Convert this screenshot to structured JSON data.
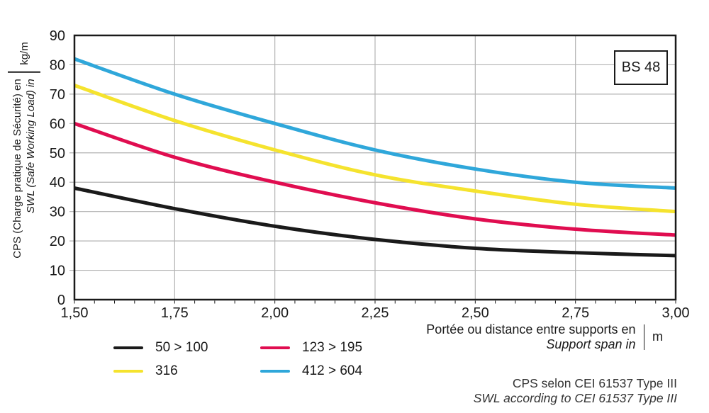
{
  "badge": {
    "label": "BS 48"
  },
  "axis_labels": {
    "y_line1": "CPS (Charge pratique de Sécurité) en",
    "y_line2": "SWL (Safe Working Load) in",
    "y_unit": "kg/m",
    "x_line1": "Portée ou distance entre supports en",
    "x_line2": "Support span in",
    "x_unit": "m"
  },
  "footnote": {
    "line1": "CPS selon CEI 61537 Type III",
    "line2": "SWL according to CEI 61537 Type III"
  },
  "chart_data": {
    "type": "line",
    "x": [
      1.5,
      1.75,
      2.0,
      2.25,
      2.5,
      2.75,
      3.0
    ],
    "x_tick_labels": [
      "1,50",
      "1,75",
      "2,00",
      "2,25",
      "2,50",
      "2,75",
      "3,00"
    ],
    "y_ticks": [
      0,
      10,
      20,
      30,
      40,
      50,
      60,
      70,
      80,
      90
    ],
    "xlim": [
      1.5,
      3.0
    ],
    "ylim": [
      0,
      90
    ],
    "x_minor_step": 0.05,
    "grid": true,
    "legend_position": "bottom-left",
    "series": [
      {
        "name": "50 > 100",
        "color": "#1a1a1a",
        "values": [
          38,
          31,
          25,
          20.5,
          17.5,
          16,
          15
        ]
      },
      {
        "name": "316",
        "color": "#f5e32e",
        "values": [
          73,
          61,
          51,
          42.5,
          37,
          32.5,
          30
        ]
      },
      {
        "name": "123 > 195",
        "color": "#e00d50",
        "values": [
          60,
          48.5,
          40,
          33,
          27.5,
          24,
          22
        ]
      },
      {
        "name": "412 > 604",
        "color": "#2fa7da",
        "values": [
          82,
          70,
          60,
          51,
          44.5,
          40,
          38
        ]
      }
    ],
    "legend_order": [
      0,
      2,
      1,
      3
    ],
    "colors": {
      "grid": "#b3b3b3",
      "frame": "#1a1a1a"
    }
  }
}
